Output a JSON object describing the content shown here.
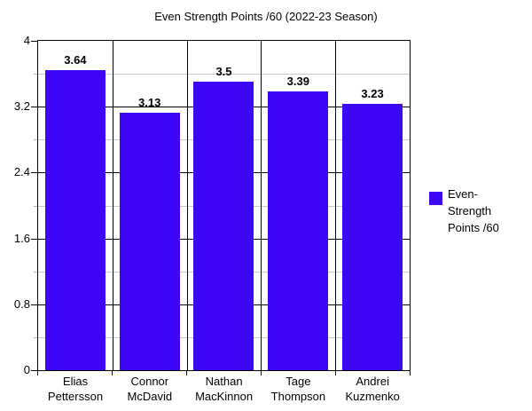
{
  "title": "Even Strength Points /60 (2022-23 Season)",
  "chart_data": {
    "type": "bar",
    "title": "Even Strength Points /60 (2022-23 Season)",
    "categories": [
      "Elias Pettersson",
      "Connor McDavid",
      "Nathan MacKinnon",
      "Tage Thompson",
      "Andrei Kuzmenko"
    ],
    "category_lines": [
      [
        "Elias",
        "Pettersson"
      ],
      [
        "Connor",
        "McDavid"
      ],
      [
        "Nathan",
        "MacKinnon"
      ],
      [
        "Tage",
        "Thompson"
      ],
      [
        "Andrei",
        "Kuzmenko"
      ]
    ],
    "values": [
      3.64,
      3.13,
      3.5,
      3.39,
      3.23
    ],
    "value_labels": [
      "3.64",
      "3.13",
      "3.5",
      "3.39",
      "3.23"
    ],
    "xlabel": "",
    "ylabel": "",
    "ylim": [
      0,
      4
    ],
    "y_major_ticks": [
      0,
      0.8,
      1.6,
      2.4,
      3.2,
      4
    ],
    "y_major_tick_labels": [
      "0",
      "0.8",
      "1.6",
      "2.4",
      "3.2",
      "4"
    ],
    "y_minor_step": 0.4,
    "grid": "major-black, minor-gray, vertical category separators",
    "legend": {
      "position": "right",
      "entries": [
        {
          "label": "Even-Strength Points /60",
          "lines": [
            "Even-",
            "Strength",
            "Points /60"
          ],
          "color": "#3d07f5"
        }
      ]
    },
    "bar_color": "#3d07f5"
  },
  "colors": {
    "bar": "#3d07f5",
    "major_grid": "#000000",
    "minor_grid": "#c9c9c9",
    "axis": "#000000",
    "background": "#ffffff",
    "text": "#000000"
  }
}
